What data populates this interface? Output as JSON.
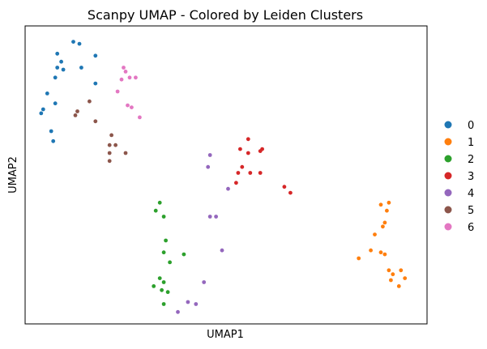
{
  "chart_data": {
    "type": "scatter",
    "title": "Scanpy UMAP - Colored by Leiden Clusters",
    "xlabel": "UMAP1",
    "ylabel": "UMAP2",
    "xlim": [
      0,
      20
    ],
    "ylim": [
      0,
      15
    ],
    "grid": false,
    "ticks": false,
    "legend_position": "right",
    "series": [
      {
        "name": "0",
        "color": "#1f77b4",
        "points": [
          [
            2.4,
            14.2
          ],
          [
            2.7,
            14.1
          ],
          [
            1.6,
            13.6
          ],
          [
            3.5,
            13.5
          ],
          [
            1.8,
            13.2
          ],
          [
            1.6,
            12.9
          ],
          [
            1.9,
            12.8
          ],
          [
            2.8,
            12.9
          ],
          [
            1.5,
            12.4
          ],
          [
            3.5,
            12.1
          ],
          [
            1.1,
            11.6
          ],
          [
            1.5,
            11.1
          ],
          [
            0.9,
            10.8
          ],
          [
            0.8,
            10.6
          ],
          [
            1.3,
            9.7
          ],
          [
            1.4,
            9.2
          ]
        ]
      },
      {
        "name": "1",
        "color": "#ff7f0e",
        "points": [
          [
            18.1,
            6.1
          ],
          [
            17.7,
            6.0
          ],
          [
            18.0,
            5.7
          ],
          [
            17.9,
            5.1
          ],
          [
            17.8,
            4.9
          ],
          [
            17.4,
            4.5
          ],
          [
            17.7,
            3.6
          ],
          [
            17.9,
            3.5
          ],
          [
            17.2,
            3.7
          ],
          [
            16.6,
            3.3
          ],
          [
            18.1,
            2.7
          ],
          [
            18.7,
            2.7
          ],
          [
            18.3,
            2.5
          ],
          [
            18.9,
            2.3
          ],
          [
            18.2,
            2.2
          ],
          [
            18.6,
            1.9
          ]
        ]
      },
      {
        "name": "2",
        "color": "#2ca02c",
        "points": [
          [
            6.7,
            6.1
          ],
          [
            6.5,
            5.7
          ],
          [
            6.9,
            5.4
          ],
          [
            7.0,
            4.2
          ],
          [
            6.9,
            3.6
          ],
          [
            7.9,
            3.5
          ],
          [
            7.2,
            3.1
          ],
          [
            6.7,
            2.3
          ],
          [
            6.9,
            2.1
          ],
          [
            6.4,
            1.9
          ],
          [
            6.8,
            1.7
          ],
          [
            7.1,
            1.6
          ],
          [
            6.9,
            1.0
          ]
        ]
      },
      {
        "name": "3",
        "color": "#d62728",
        "points": [
          [
            11.1,
            9.3
          ],
          [
            10.7,
            8.8
          ],
          [
            11.1,
            8.6
          ],
          [
            11.8,
            8.8
          ],
          [
            11.7,
            8.7
          ],
          [
            10.8,
            7.9
          ],
          [
            10.6,
            7.6
          ],
          [
            11.2,
            7.6
          ],
          [
            11.7,
            7.6
          ],
          [
            10.5,
            7.1
          ],
          [
            12.9,
            6.9
          ],
          [
            13.2,
            6.6
          ]
        ]
      },
      {
        "name": "4",
        "color": "#9467bd",
        "points": [
          [
            9.2,
            8.5
          ],
          [
            9.1,
            7.9
          ],
          [
            10.1,
            6.8
          ],
          [
            9.2,
            5.4
          ],
          [
            9.5,
            5.4
          ],
          [
            9.8,
            3.7
          ],
          [
            8.9,
            2.1
          ],
          [
            8.1,
            1.1
          ],
          [
            8.5,
            1.0
          ],
          [
            7.6,
            0.6
          ]
        ]
      },
      {
        "name": "5",
        "color": "#8c564b",
        "points": [
          [
            3.2,
            11.2
          ],
          [
            2.6,
            10.7
          ],
          [
            2.5,
            10.5
          ],
          [
            3.5,
            10.2
          ],
          [
            4.3,
            9.5
          ],
          [
            4.2,
            9.0
          ],
          [
            4.5,
            9.0
          ],
          [
            4.2,
            8.6
          ],
          [
            5.0,
            8.6
          ],
          [
            4.2,
            8.2
          ]
        ]
      },
      {
        "name": "6",
        "color": "#e377c2",
        "points": [
          [
            4.9,
            12.9
          ],
          [
            5.0,
            12.7
          ],
          [
            5.5,
            12.4
          ],
          [
            5.2,
            12.4
          ],
          [
            4.8,
            12.3
          ],
          [
            4.6,
            11.7
          ],
          [
            5.1,
            11.0
          ],
          [
            5.3,
            10.9
          ],
          [
            5.7,
            10.4
          ]
        ]
      }
    ]
  }
}
